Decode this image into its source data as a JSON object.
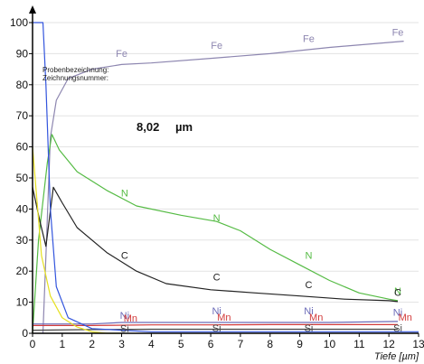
{
  "chart_data": {
    "type": "line",
    "xlabel": "Tiefe [µm]",
    "ylabel": "",
    "xlim": [
      0,
      13
    ],
    "ylim": [
      0,
      100
    ],
    "x_ticks": [
      "0",
      "1",
      "2",
      "3",
      "4",
      "5",
      "6",
      "7",
      "8",
      "9",
      "10",
      "11",
      "12",
      "13"
    ],
    "y_ticks": [
      "0",
      "10",
      "20",
      "30",
      "40",
      "50",
      "60",
      "70",
      "80",
      "90",
      "100"
    ],
    "annotations": {
      "sample_label": "Probenbezeichnung:",
      "drawing_label": "Zeichnungsnummer:",
      "thickness_value": "8,02",
      "thickness_unit": "µm"
    },
    "series": [
      {
        "name": "Fe",
        "color": "#8d86b0",
        "x": [
          0.35,
          0.45,
          0.6,
          0.8,
          1.2,
          2,
          3,
          4,
          6,
          8,
          10,
          12.5
        ],
        "y": [
          0,
          25,
          63,
          75,
          82,
          85,
          86.5,
          87,
          88.5,
          90,
          92,
          94
        ],
        "labels_x": [
          3,
          6.2,
          9.3,
          12.3
        ],
        "labels_y": [
          89,
          91.5,
          93.8,
          95.8
        ]
      },
      {
        "name": "N",
        "color": "#55bb44",
        "x": [
          0,
          0.2,
          0.5,
          0.65,
          0.9,
          1.5,
          2.5,
          3.5,
          5,
          6.2,
          7,
          8,
          9,
          10,
          11,
          12,
          12.3
        ],
        "y": [
          0,
          30,
          55,
          64,
          59,
          52,
          46,
          41,
          38,
          36,
          33,
          27,
          22,
          17,
          13,
          11,
          10.5
        ],
        "labels_x": [
          3.1,
          6.2,
          9.3,
          12.3
        ],
        "labels_y": [
          44,
          36,
          24,
          12.5
        ]
      },
      {
        "name": "C",
        "color": "#222222",
        "x": [
          0,
          0.25,
          0.45,
          0.7,
          1,
          1.5,
          2.5,
          3.5,
          4.5,
          6,
          7.5,
          9,
          10.5,
          12,
          12.3
        ],
        "y": [
          47,
          36,
          28,
          47,
          42,
          34,
          26,
          20,
          16,
          14,
          13,
          12,
          11,
          10.5,
          10.2
        ],
        "labels_x": [
          3.1,
          6.2,
          9.3,
          12.3
        ],
        "labels_y": [
          24,
          17,
          14.5,
          12
        ]
      },
      {
        "name": "Ni",
        "color": "#6a6ab8",
        "x": [
          0,
          1,
          2,
          3,
          5,
          7,
          9,
          10,
          12.3
        ],
        "y": [
          3,
          3,
          3,
          3.5,
          3.5,
          3.5,
          3.5,
          3.5,
          3.8
        ],
        "labels_x": [
          3.1,
          6.2,
          9.3,
          12.3
        ],
        "labels_y": [
          4.6,
          6.1,
          6.1,
          5.6
        ]
      },
      {
        "name": "Mn",
        "color": "#d23a3a",
        "x": [
          0,
          2,
          4,
          6,
          8,
          10,
          12.3
        ],
        "y": [
          2.5,
          2.5,
          2.7,
          2.7,
          2.8,
          2.8,
          2.8
        ],
        "labels_x": [
          3.3,
          6.45,
          9.55,
          12.55
        ],
        "labels_y": [
          3.8,
          4.1,
          4.1,
          4.0
        ]
      },
      {
        "name": "Si",
        "color": "#444444",
        "x": [
          0,
          2,
          4,
          6,
          8,
          10,
          12.3
        ],
        "y": [
          1,
          1.2,
          1.3,
          1.3,
          1.3,
          1.3,
          1.3
        ],
        "labels_x": [
          3.1,
          6.2,
          9.3,
          12.3
        ],
        "labels_y": [
          0.5,
          0.6,
          0.6,
          0.6
        ]
      },
      {
        "name": "",
        "color": "#3355dd",
        "x": [
          0,
          0.35,
          0.45,
          0.6,
          0.8,
          1.2,
          2,
          3,
          4,
          13
        ],
        "y": [
          100,
          100,
          80,
          40,
          15,
          5,
          1.5,
          1,
          0.5,
          0.5
        ]
      },
      {
        "name": "",
        "color": "#e6e020",
        "x": [
          0,
          0.3,
          0.6,
          1,
          1.5,
          2,
          2.5,
          3
        ],
        "y": [
          60,
          25,
          12,
          5,
          2,
          0.5,
          0,
          0
        ]
      }
    ]
  }
}
